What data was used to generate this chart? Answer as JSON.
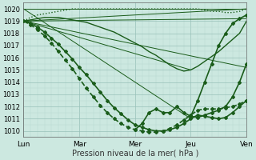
{
  "xlabel": "Pression niveau de la mer( hPa )",
  "ylim": [
    1009.5,
    1020.5
  ],
  "yticks": [
    1010,
    1011,
    1012,
    1013,
    1014,
    1015,
    1016,
    1017,
    1018,
    1019,
    1020
  ],
  "xtick_labels": [
    "Lun",
    "Mar",
    "Mer",
    "Jeu",
    "Ven"
  ],
  "xtick_positions": [
    0,
    24,
    48,
    72,
    96
  ],
  "xlim": [
    0,
    96
  ],
  "background_color": "#cce8e0",
  "grid_color_minor": "#b8d8d0",
  "grid_color_major": "#98c0b8",
  "line_color": "#1a5c1a",
  "figsize": [
    3.2,
    2.0
  ],
  "dpi": 100,
  "straight_lines": [
    {
      "x": [
        0,
        96
      ],
      "y": [
        1019.0,
        1020.0
      ]
    },
    {
      "x": [
        0,
        96
      ],
      "y": [
        1019.0,
        1019.2
      ]
    },
    {
      "x": [
        0,
        96
      ],
      "y": [
        1019.0,
        1015.2
      ]
    },
    {
      "x": [
        0,
        72
      ],
      "y": [
        1019.0,
        1015.0
      ]
    },
    {
      "x": [
        0,
        96
      ],
      "y": [
        1020.0,
        1020.0
      ]
    },
    {
      "x": [
        0,
        72
      ],
      "y": [
        1020.0,
        1011.0
      ]
    }
  ],
  "curve1": {
    "x": [
      0,
      3,
      6,
      9,
      12,
      15,
      18,
      21,
      24,
      27,
      30,
      33,
      36,
      39,
      42,
      45,
      48,
      51,
      54,
      57,
      60,
      63,
      66,
      69,
      72,
      75,
      78,
      81,
      84,
      87,
      90,
      93,
      96
    ],
    "y": [
      1019.0,
      1019.3,
      1019.5,
      1019.6,
      1019.7,
      1019.8,
      1019.9,
      1020.0,
      1020.0,
      1020.0,
      1020.0,
      1020.0,
      1020.0,
      1020.0,
      1020.0,
      1020.0,
      1020.0,
      1020.0,
      1020.0,
      1020.0,
      1020.0,
      1020.0,
      1020.0,
      1020.0,
      1020.0,
      1020.0,
      1019.9,
      1019.8,
      1019.8,
      1019.7,
      1019.7,
      1019.8,
      1020.0
    ],
    "lw": 1.0,
    "style": "dotted"
  },
  "curve2": {
    "x": [
      0,
      3,
      6,
      9,
      12,
      15,
      18,
      21,
      24,
      27,
      30,
      33,
      36,
      39,
      42,
      45,
      48,
      51,
      54,
      57,
      60,
      63,
      66,
      69,
      72,
      75,
      78,
      81,
      84,
      87,
      90,
      93,
      96
    ],
    "y": [
      1019.0,
      1019.1,
      1019.2,
      1019.3,
      1019.3,
      1019.3,
      1019.2,
      1019.1,
      1019.0,
      1018.9,
      1018.7,
      1018.5,
      1018.3,
      1018.1,
      1017.8,
      1017.5,
      1017.2,
      1016.9,
      1016.5,
      1016.2,
      1015.8,
      1015.4,
      1015.1,
      1014.9,
      1015.0,
      1015.3,
      1015.7,
      1016.1,
      1016.5,
      1017.0,
      1017.5,
      1018.0,
      1019.0
    ],
    "lw": 1.0,
    "style": "solid"
  },
  "dense_curve1": {
    "x": [
      0,
      3,
      6,
      9,
      12,
      15,
      18,
      21,
      24,
      27,
      30,
      33,
      36,
      39,
      42,
      45,
      48,
      51,
      54,
      57,
      60,
      63,
      66,
      69,
      72,
      75,
      78,
      81,
      84,
      87,
      90,
      93,
      96
    ],
    "y": [
      1019.0,
      1018.8,
      1018.5,
      1018.1,
      1017.6,
      1017.1,
      1016.5,
      1015.9,
      1015.2,
      1014.6,
      1013.9,
      1013.2,
      1012.5,
      1011.9,
      1011.4,
      1010.9,
      1010.5,
      1010.3,
      1010.1,
      1010.0,
      1010.0,
      1010.1,
      1010.3,
      1010.6,
      1011.0,
      1011.3,
      1011.2,
      1011.1,
      1011.0,
      1011.1,
      1011.5,
      1012.0,
      1012.5
    ],
    "lw": 1.2,
    "style": "solid",
    "marker": "D",
    "ms": 2.0
  },
  "dense_curve2": {
    "x": [
      0,
      3,
      6,
      9,
      12,
      15,
      18,
      21,
      24,
      27,
      30,
      33,
      36,
      39,
      42,
      45,
      48,
      51,
      54,
      57,
      60,
      63,
      66,
      69,
      72,
      75,
      78,
      81,
      84,
      87,
      90,
      93,
      96
    ],
    "y": [
      1019.0,
      1018.7,
      1018.3,
      1017.8,
      1017.2,
      1016.5,
      1015.8,
      1015.1,
      1014.3,
      1013.5,
      1012.8,
      1012.1,
      1011.5,
      1011.0,
      1010.6,
      1010.3,
      1010.1,
      1010.0,
      1009.9,
      1009.9,
      1010.0,
      1010.2,
      1010.5,
      1010.9,
      1011.3,
      1011.7,
      1011.8,
      1011.8,
      1011.8,
      1011.9,
      1012.0,
      1012.2,
      1012.5
    ],
    "lw": 1.2,
    "style": "dashed",
    "marker": "D",
    "ms": 2.0
  },
  "detail_curve": {
    "x": [
      48,
      51,
      54,
      57,
      60,
      63,
      66,
      69,
      72,
      75,
      78,
      81,
      84,
      87,
      90,
      93,
      96
    ],
    "y": [
      1010.1,
      1010.6,
      1011.5,
      1011.8,
      1011.5,
      1011.5,
      1012.0,
      1011.5,
      1011.2,
      1011.1,
      1011.3,
      1011.5,
      1011.7,
      1012.0,
      1012.8,
      1014.0,
      1015.5
    ],
    "lw": 1.2,
    "style": "solid",
    "marker": "D",
    "ms": 2.0
  },
  "right_rise_curve": {
    "x": [
      72,
      75,
      78,
      81,
      84,
      87,
      90,
      93,
      96
    ],
    "y": [
      1011.2,
      1012.5,
      1014.0,
      1015.5,
      1017.0,
      1018.0,
      1018.8,
      1019.2,
      1019.5
    ],
    "lw": 1.2,
    "style": "solid",
    "marker": "D",
    "ms": 2.0
  }
}
